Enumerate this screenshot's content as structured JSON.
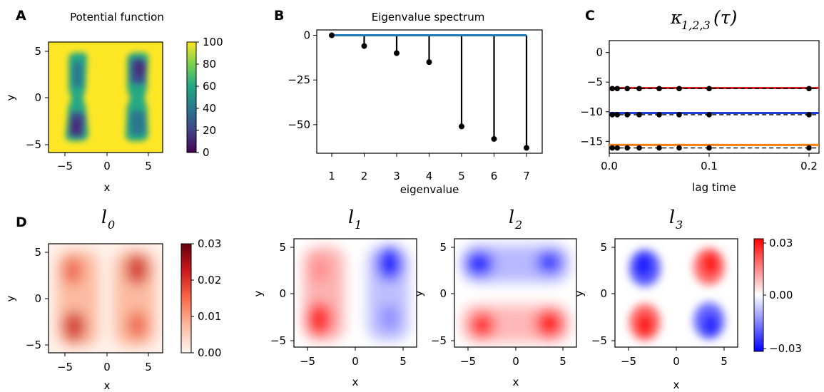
{
  "chart_data": [
    {
      "panel": "A",
      "type": "heatmap",
      "title": "Potential function",
      "xlabel": "x",
      "ylabel": "y",
      "xlim": [
        -6,
        6
      ],
      "ylim": [
        -6,
        6
      ],
      "xticks": [
        "−5",
        "0",
        "5"
      ],
      "yticks": [
        "5",
        "0",
        "−5"
      ],
      "colormap": "viridis",
      "colorbar": {
        "ticks": [
          "100",
          "80",
          "60",
          "40",
          "20",
          "0"
        ],
        "range": [
          0,
          100
        ]
      },
      "wells": [
        {
          "x": -3.5,
          "y": -3.5,
          "depth": 0
        },
        {
          "x": -3.5,
          "y": 3.5,
          "depth": 30
        },
        {
          "x": 3.5,
          "y": 3.5,
          "depth": 0
        },
        {
          "x": 3.5,
          "y": -3.5,
          "depth": 30
        }
      ]
    },
    {
      "panel": "B",
      "type": "stem",
      "title": "Eigenvalue spectrum",
      "xlabel": "eigenvalue",
      "categories": [
        1,
        2,
        3,
        4,
        5,
        6,
        7
      ],
      "values": [
        0,
        -6,
        -10,
        -15,
        -51,
        -58,
        -63
      ],
      "reference_line": 0,
      "ylim": [
        -66,
        3
      ],
      "yticks": [
        "0",
        "−25",
        "−50"
      ],
      "xticks": [
        "1",
        "2",
        "3",
        "4",
        "5",
        "6",
        "7"
      ],
      "colors": {
        "stem": "#000000",
        "line": "#1f77b4"
      }
    },
    {
      "panel": "C",
      "type": "line",
      "title_base": "κ",
      "title_sub": "1,2,3",
      "title_arg": "(τ)",
      "xlabel": "lag time",
      "xlim": [
        0,
        0.21
      ],
      "ylim": [
        -17,
        2
      ],
      "xticks": [
        "0.0",
        "0.1",
        "0.2"
      ],
      "yticks": [
        "0",
        "−5",
        "−10",
        "−15"
      ],
      "x": [
        0.003,
        0.008,
        0.018,
        0.03,
        0.05,
        0.07,
        0.1,
        0.2
      ],
      "series": [
        {
          "value": -6.0,
          "points": -6.1,
          "color": "#d62728"
        },
        {
          "value": -10.2,
          "points": -10.5,
          "color": "#1f3fd6"
        },
        {
          "value": -15.6,
          "points": -16.1,
          "color": "#ff7f0e"
        }
      ]
    },
    {
      "panel": "D",
      "type": "heatmap",
      "title": "l0",
      "title_base": "l",
      "title_sub": "0",
      "xlabel": "x",
      "ylabel": "y",
      "xticks": [
        "−5",
        "0",
        "5"
      ],
      "yticks": [
        "5",
        "0",
        "−5"
      ],
      "colormap": "Reds",
      "colorbar": {
        "ticks": [
          "0.03",
          "0.02",
          "0.01",
          "0.00"
        ],
        "range": [
          0,
          0.03
        ]
      },
      "sign_pattern": {
        "top_left": 1,
        "top_right": 1,
        "bottom_left": 1,
        "bottom_right": 1
      }
    },
    {
      "type": "heatmap",
      "title_base": "l",
      "title_sub": "1",
      "xlabel": "x",
      "ylabel": "y",
      "xticks": [
        "−5",
        "0",
        "5"
      ],
      "yticks": [
        "5",
        "0",
        "−5"
      ],
      "colormap": "bwr",
      "sign_pattern": {
        "top_left": 1,
        "top_right": -1,
        "bottom_left": 1,
        "bottom_right": -1
      }
    },
    {
      "type": "heatmap",
      "title_base": "l",
      "title_sub": "2",
      "xlabel": "x",
      "ylabel": "y",
      "xticks": [
        "−5",
        "0",
        "5"
      ],
      "yticks": [
        "5",
        "0",
        "−5"
      ],
      "colormap": "bwr",
      "sign_pattern": {
        "top_left": -1,
        "top_right": -1,
        "bottom_left": 1,
        "bottom_right": 1
      }
    },
    {
      "type": "heatmap",
      "title_base": "l",
      "title_sub": "3",
      "xlabel": "x",
      "ylabel": "y",
      "xticks": [
        "−5",
        "0",
        "5"
      ],
      "yticks": [
        "5",
        "0",
        "−5"
      ],
      "colormap": "bwr",
      "colorbar": {
        "ticks": [
          "0.03",
          "0.00",
          "−0.03"
        ],
        "range": [
          -0.03,
          0.03
        ]
      },
      "sign_pattern": {
        "top_left": -1,
        "top_right": 1,
        "bottom_left": 1,
        "bottom_right": -1
      }
    }
  ],
  "panel_labels": {
    "a": "A",
    "b": "B",
    "c": "C",
    "d": "D"
  }
}
